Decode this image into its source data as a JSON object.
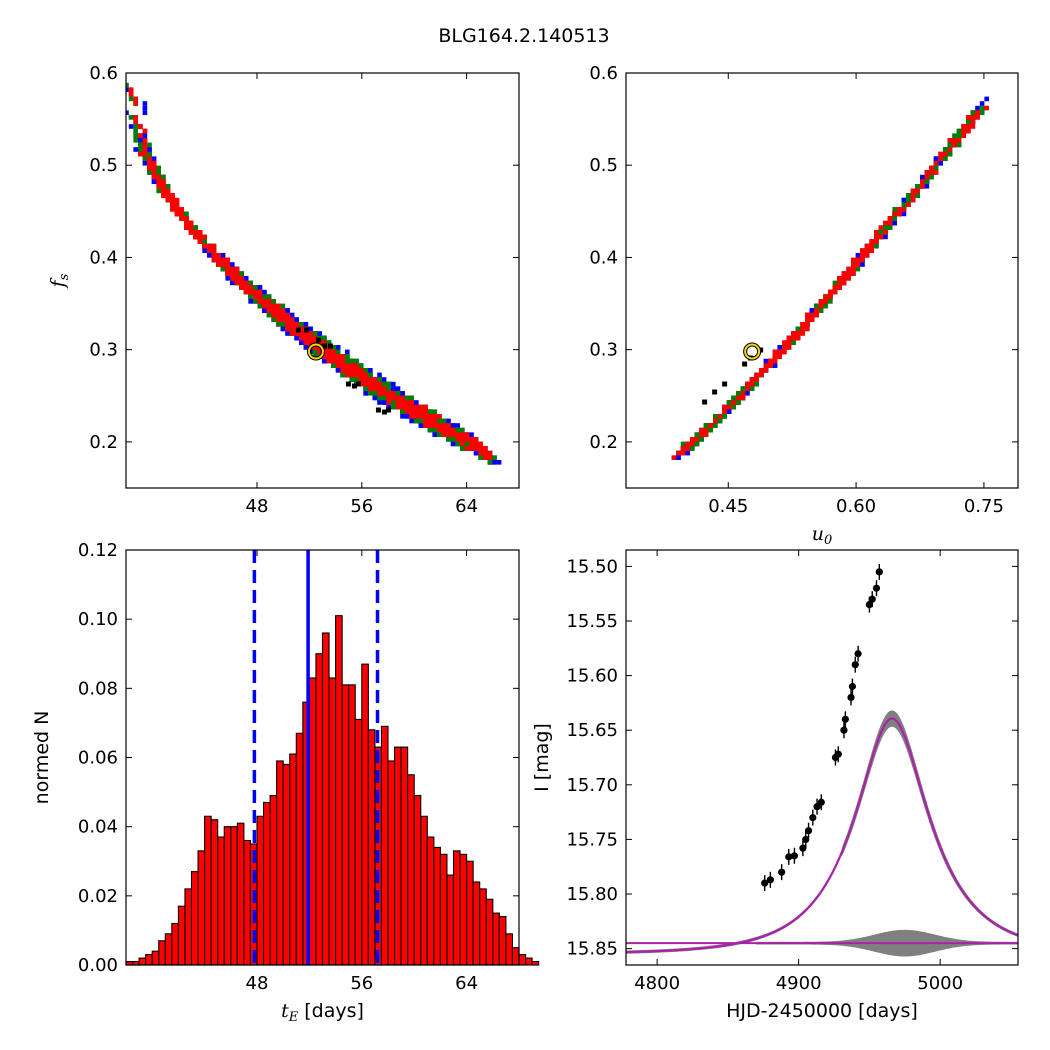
{
  "figure": {
    "title": "BLG164.2.140513"
  },
  "colors": {
    "red": "#ff0000",
    "green": "#008000",
    "blue": "#0000ff",
    "black": "#000000",
    "yellow": "#ffd700",
    "purple": "#aa22aa",
    "gray": "#808080"
  },
  "chart_data": [
    {
      "id": "ax_fs_tE",
      "type": "heatmap",
      "xlabel": "",
      "ylabel": "f",
      "ylabel_sub": "s",
      "xlim": [
        38,
        68
      ],
      "ylim": [
        0.15,
        0.6
      ],
      "xticks": [
        48,
        56,
        64
      ],
      "yticks": [
        0.2,
        0.3,
        0.4,
        0.5,
        0.6
      ],
      "ytick_labels": [
        "0.2",
        "0.3",
        "0.4",
        "0.5",
        "0.6"
      ],
      "region": {
        "x_start": 38.5,
        "x_end": 65.5,
        "fs_start": 0.575,
        "fs_end": 0.19,
        "curve_power": 0.55
      },
      "best_fit": {
        "x": 52.5,
        "y": 0.298
      }
    },
    {
      "id": "ax_fs_u0",
      "type": "heatmap",
      "xlabel": "u",
      "xlabel_sub": "0",
      "ylabel": "",
      "xlim": [
        0.33,
        0.79
      ],
      "ylim": [
        0.15,
        0.6
      ],
      "xticks": [
        0.45,
        0.6,
        0.75
      ],
      "xtick_labels": [
        "0.45",
        "0.60",
        "0.75"
      ],
      "yticks": [
        0.2,
        0.3,
        0.4,
        0.5,
        0.6
      ],
      "ytick_labels": [
        "0.2",
        "0.3",
        "0.4",
        "0.5",
        "0.6"
      ],
      "region": {
        "x_start": 0.39,
        "x_end": 0.745,
        "fs_start": 0.19,
        "fs_end": 0.565
      },
      "best_fit": {
        "x": 0.478,
        "y": 0.298
      }
    },
    {
      "id": "ax_hist_tE",
      "type": "bar",
      "xlabel": "t",
      "xlabel_sub": "E",
      "xlabel_suffix": " [days]",
      "ylabel": "normed N",
      "xlim": [
        38,
        68
      ],
      "ylim": [
        0,
        0.12
      ],
      "xticks": [
        48,
        56,
        64
      ],
      "yticks": [
        0,
        0.02,
        0.04,
        0.06,
        0.08,
        0.1,
        0.12
      ],
      "ytick_labels": [
        "0.00",
        "0.02",
        "0.04",
        "0.06",
        "0.08",
        "0.10",
        "0.12"
      ],
      "bin_start": 38.0,
      "bin_width": 0.5,
      "values": [
        0.001,
        0.001,
        0.002,
        0.003,
        0.004,
        0.007,
        0.009,
        0.012,
        0.017,
        0.022,
        0.027,
        0.033,
        0.043,
        0.042,
        0.037,
        0.04,
        0.04,
        0.041,
        0.036,
        0.035,
        0.043,
        0.047,
        0.049,
        0.059,
        0.058,
        0.061,
        0.067,
        0.076,
        0.083,
        0.09,
        0.096,
        0.083,
        0.101,
        0.081,
        0.081,
        0.071,
        0.087,
        0.068,
        0.063,
        0.069,
        0.059,
        0.063,
        0.063,
        0.055,
        0.049,
        0.043,
        0.037,
        0.034,
        0.032,
        0.026,
        0.033,
        0.032,
        0.03,
        0.024,
        0.022,
        0.019,
        0.015,
        0.014,
        0.009,
        0.005,
        0.003,
        0.002,
        0.001
      ],
      "lines": {
        "median": 51.9,
        "lower": 47.8,
        "upper": 57.2
      }
    },
    {
      "id": "ax_lightcurve",
      "type": "scatter",
      "xlabel": "HJD-2450000 [days]",
      "ylabel": "I [mag]",
      "xlim": [
        4778,
        5055
      ],
      "ylim": [
        15.865,
        15.485
      ],
      "xticks": [
        4800,
        4900,
        5000
      ],
      "yticks": [
        15.5,
        15.55,
        15.6,
        15.65,
        15.7,
        15.75,
        15.8,
        15.85
      ],
      "ytick_labels": [
        "15.50",
        "15.55",
        "15.60",
        "15.65",
        "15.70",
        "15.75",
        "15.80",
        "15.85"
      ],
      "model": {
        "t0": 4966,
        "tE": 52.5,
        "u0": 0.478,
        "baseline_mag": 15.855,
        "fs": 0.298
      },
      "residual_baseline": 15.845,
      "points": [
        [
          4876,
          15.79
        ],
        [
          4880,
          15.787
        ],
        [
          4888,
          15.78
        ],
        [
          4893,
          15.766
        ],
        [
          4897,
          15.765
        ],
        [
          4903,
          15.758
        ],
        [
          4905,
          15.75
        ],
        [
          4907,
          15.742
        ],
        [
          4910,
          15.73
        ],
        [
          4913,
          15.72
        ],
        [
          4916,
          15.716
        ],
        [
          4926,
          15.675
        ],
        [
          4928,
          15.672
        ],
        [
          4932,
          15.65
        ],
        [
          4933,
          15.64
        ],
        [
          4937,
          15.62
        ],
        [
          4938,
          15.61
        ],
        [
          4940,
          15.59
        ],
        [
          4942,
          15.58
        ],
        [
          4950,
          15.535
        ],
        [
          4952,
          15.53
        ],
        [
          4955,
          15.52
        ],
        [
          4957,
          15.505
        ]
      ]
    }
  ]
}
